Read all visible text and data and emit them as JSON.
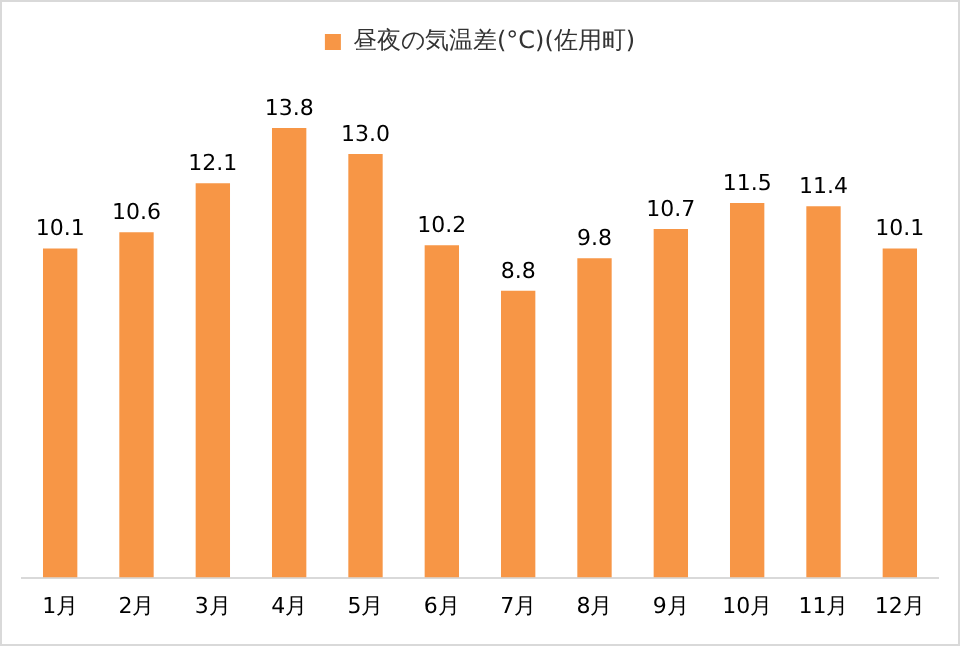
{
  "chart_data": {
    "type": "bar",
    "categories": [
      "1月",
      "2月",
      "3月",
      "4月",
      "5月",
      "6月",
      "7月",
      "8月",
      "9月",
      "10月",
      "11月",
      "12月"
    ],
    "series": [
      {
        "name": "昼夜の気温差(°C)(佐用町)",
        "color": "#f79646",
        "values": [
          10.1,
          10.6,
          12.1,
          13.8,
          13.0,
          10.2,
          8.8,
          9.8,
          10.7,
          11.5,
          11.4,
          10.1
        ],
        "value_labels": [
          "10.1",
          "10.6",
          "12.1",
          "13.8",
          "13.0",
          "10.2",
          "8.8",
          "9.8",
          "10.7",
          "11.5",
          "11.4",
          "10.1"
        ]
      }
    ],
    "legend": "top",
    "grid": false
  }
}
